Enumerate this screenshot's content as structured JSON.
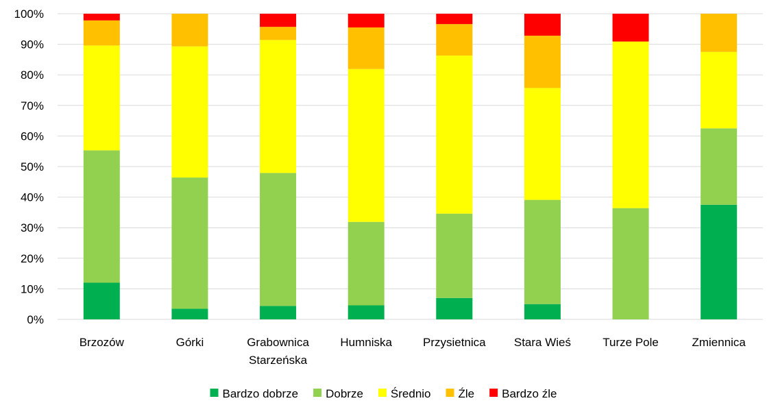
{
  "chart_data": {
    "type": "bar",
    "stacked": true,
    "percent_stacked": true,
    "categories": [
      [
        "Brzozów"
      ],
      [
        "Górki"
      ],
      [
        "Grabownica",
        "Starzeńska"
      ],
      [
        "Humniska"
      ],
      [
        "Przysietnica"
      ],
      [
        "Stara Wieś"
      ],
      [
        "Turze Pole"
      ],
      [
        "Zmiennica"
      ]
    ],
    "series": [
      {
        "name": "Bardzo dobrze",
        "color": "#00b050",
        "values": [
          12.0,
          3.5,
          4.4,
          4.6,
          7.0,
          5.0,
          0.0,
          37.5
        ]
      },
      {
        "name": "Dobrze",
        "color": "#92d050",
        "values": [
          43.3,
          42.9,
          43.5,
          27.3,
          27.6,
          34.1,
          36.4,
          25.0
        ]
      },
      {
        "name": "Średnio",
        "color": "#ffff00",
        "values": [
          34.3,
          42.9,
          43.5,
          50.0,
          51.7,
          36.6,
          54.5,
          25.0
        ]
      },
      {
        "name": "Źle",
        "color": "#ffc000",
        "values": [
          8.2,
          10.7,
          4.3,
          13.6,
          10.3,
          17.1,
          0.0,
          12.5
        ]
      },
      {
        "name": "Bardzo źle",
        "color": "#ff0000",
        "values": [
          2.2,
          0.0,
          4.3,
          4.5,
          3.4,
          7.2,
          9.1,
          0.0
        ]
      }
    ],
    "yticks": [
      "0%",
      "10%",
      "20%",
      "30%",
      "40%",
      "50%",
      "60%",
      "70%",
      "80%",
      "90%",
      "100%"
    ],
    "ylim": [
      0,
      100
    ],
    "grid": true,
    "legend": "bottom"
  }
}
